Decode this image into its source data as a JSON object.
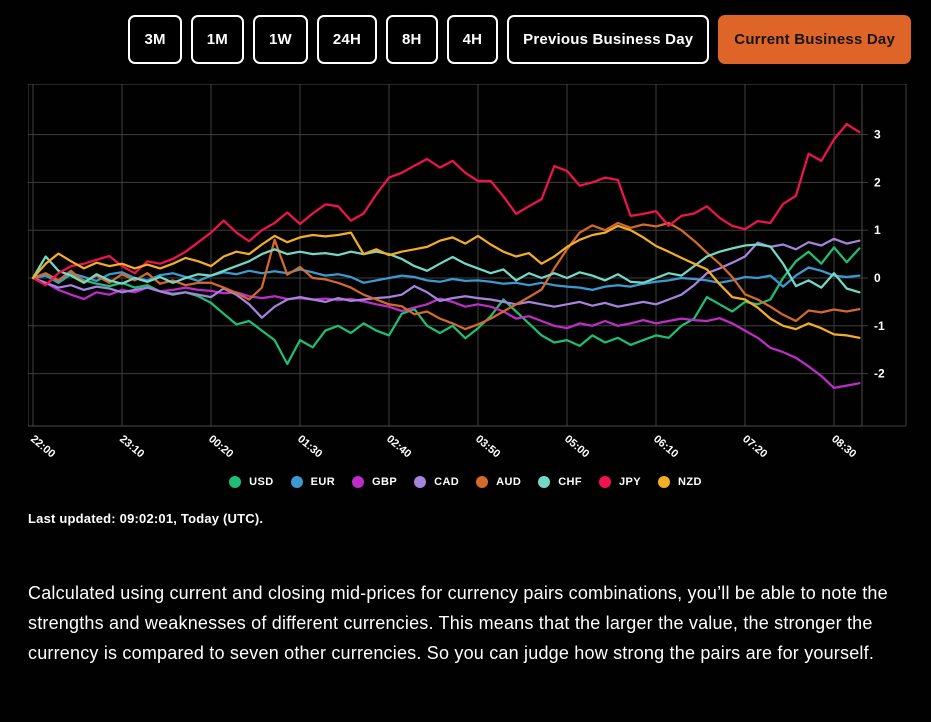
{
  "toolbar": {
    "active_bg": "#de6527",
    "active_text": "#151515",
    "buttons": [
      {
        "label": "3M"
      },
      {
        "label": "1M"
      },
      {
        "label": "1W"
      },
      {
        "label": "24H"
      },
      {
        "label": "8H"
      },
      {
        "label": "4H"
      },
      {
        "label": "Previous Business Day"
      },
      {
        "label": "Current Business Day",
        "active": true
      }
    ]
  },
  "chart_data": {
    "type": "line",
    "title": "",
    "xlabel": "",
    "ylabel": "",
    "x_labels": [
      "22:00",
      "23:10",
      "00:20",
      "01:30",
      "02:40",
      "03:50",
      "05:00",
      "06:10",
      "07:20",
      "08:30"
    ],
    "points_per_tick": 7,
    "point_interval_minutes": 10,
    "y_ticks": [
      3,
      2,
      1,
      0,
      -1,
      -2
    ],
    "ylim": [
      -3.1,
      4.06
    ],
    "grid": true,
    "legend_position": "bottom",
    "series": [
      {
        "name": "USD",
        "color": "#1fbe76",
        "values": [
          0,
          0.05,
          -0.1,
          0.08,
          -0.05,
          -0.12,
          -0.17,
          -0.1,
          -0.2,
          -0.15,
          -0.28,
          -0.33,
          -0.3,
          -0.38,
          -0.52,
          -0.75,
          -0.97,
          -0.9,
          -1.1,
          -1.3,
          -1.8,
          -1.3,
          -1.45,
          -1.1,
          -1.0,
          -1.15,
          -0.95,
          -1.1,
          -1.2,
          -0.75,
          -0.65,
          -1.0,
          -1.15,
          -1.0,
          -1.26,
          -1.05,
          -0.8,
          -0.45,
          -0.7,
          -0.95,
          -1.2,
          -1.35,
          -1.3,
          -1.42,
          -1.2,
          -1.35,
          -1.25,
          -1.4,
          -1.3,
          -1.2,
          -1.25,
          -1.0,
          -0.85,
          -0.4,
          -0.55,
          -0.7,
          -0.5,
          -0.55,
          -0.45,
          0.0,
          0.35,
          0.55,
          0.3,
          0.64,
          0.33,
          0.62
        ]
      },
      {
        "name": "EUR",
        "color": "#3b9ad1",
        "values": [
          0,
          0.05,
          -0.08,
          0.1,
          0.02,
          -0.06,
          0.08,
          0.12,
          0.0,
          -0.05,
          0.06,
          0.1,
          0.02,
          -0.06,
          0.05,
          0.12,
          0.08,
          0.15,
          0.1,
          0.14,
          0.1,
          0.18,
          0.12,
          0.05,
          0.08,
          0.02,
          -0.1,
          -0.05,
          0.0,
          0.05,
          0.02,
          -0.05,
          -0.08,
          -0.02,
          -0.06,
          -0.05,
          -0.08,
          -0.12,
          -0.1,
          -0.15,
          -0.1,
          -0.15,
          -0.18,
          -0.2,
          -0.25,
          -0.18,
          -0.15,
          -0.18,
          -0.12,
          -0.08,
          -0.05,
          0.0,
          -0.02,
          -0.05,
          -0.1,
          -0.05,
          0.02,
          0.0,
          0.05,
          -0.18,
          0.05,
          0.22,
          0.15,
          0.05,
          0.02,
          0.05
        ]
      },
      {
        "name": "GBP",
        "color": "#bf2dc9",
        "values": [
          0,
          -0.1,
          -0.25,
          -0.35,
          -0.44,
          -0.3,
          -0.35,
          -0.25,
          -0.3,
          -0.2,
          -0.28,
          -0.25,
          -0.2,
          -0.25,
          -0.27,
          -0.32,
          -0.3,
          -0.38,
          -0.42,
          -0.38,
          -0.44,
          -0.42,
          -0.45,
          -0.43,
          -0.46,
          -0.44,
          -0.49,
          -0.55,
          -0.6,
          -0.69,
          -0.62,
          -0.55,
          -0.43,
          -0.5,
          -0.6,
          -0.55,
          -0.6,
          -0.7,
          -0.85,
          -0.8,
          -0.9,
          -1.0,
          -1.05,
          -0.95,
          -1.0,
          -0.9,
          -1.0,
          -0.95,
          -0.88,
          -0.95,
          -0.9,
          -0.85,
          -0.88,
          -0.9,
          -0.84,
          -0.95,
          -1.1,
          -1.25,
          -1.46,
          -1.55,
          -1.67,
          -1.85,
          -2.05,
          -2.3,
          -2.25,
          -2.2
        ]
      },
      {
        "name": "CAD",
        "color": "#a584dc",
        "values": [
          0,
          -0.1,
          -0.2,
          -0.15,
          -0.25,
          -0.18,
          -0.22,
          -0.3,
          -0.25,
          -0.2,
          -0.28,
          -0.35,
          -0.3,
          -0.35,
          -0.4,
          -0.22,
          -0.35,
          -0.55,
          -0.83,
          -0.6,
          -0.45,
          -0.4,
          -0.45,
          -0.5,
          -0.42,
          -0.48,
          -0.45,
          -0.42,
          -0.4,
          -0.35,
          -0.17,
          -0.3,
          -0.48,
          -0.42,
          -0.38,
          -0.42,
          -0.45,
          -0.5,
          -0.55,
          -0.5,
          -0.55,
          -0.6,
          -0.55,
          -0.5,
          -0.58,
          -0.52,
          -0.6,
          -0.55,
          -0.5,
          -0.55,
          -0.45,
          -0.35,
          -0.15,
          0.1,
          0.2,
          0.32,
          0.45,
          0.74,
          0.65,
          0.7,
          0.6,
          0.75,
          0.68,
          0.82,
          0.72,
          0.78
        ]
      },
      {
        "name": "AUD",
        "color": "#d3692d",
        "values": [
          0,
          0.1,
          -0.05,
          0.15,
          -0.08,
          0.05,
          -0.1,
          0.08,
          -0.05,
          0.1,
          -0.12,
          -0.05,
          -0.15,
          -0.1,
          -0.1,
          -0.2,
          -0.31,
          -0.45,
          -0.2,
          0.8,
          0.07,
          0.23,
          0.0,
          -0.03,
          -0.1,
          -0.2,
          -0.35,
          -0.45,
          -0.55,
          -0.59,
          -0.76,
          -0.7,
          -0.85,
          -0.95,
          -1.07,
          -0.97,
          -0.85,
          -0.7,
          -0.55,
          -0.4,
          -0.24,
          0.2,
          0.6,
          0.95,
          1.1,
          1.0,
          1.15,
          1.05,
          1.12,
          1.08,
          1.15,
          1.0,
          0.78,
          0.53,
          0.3,
          0.02,
          -0.34,
          -0.45,
          -0.6,
          -0.77,
          -0.9,
          -0.68,
          -0.72,
          -0.66,
          -0.7,
          -0.65
        ]
      },
      {
        "name": "CHF",
        "color": "#74d9c4",
        "values": [
          0,
          0.45,
          0.15,
          0.05,
          -0.1,
          0.08,
          -0.05,
          -0.12,
          0.0,
          -0.08,
          0.02,
          -0.1,
          0.0,
          0.08,
          0.05,
          0.15,
          0.25,
          0.35,
          0.5,
          0.6,
          0.5,
          0.55,
          0.5,
          0.52,
          0.48,
          0.55,
          0.5,
          0.55,
          0.5,
          0.4,
          0.25,
          0.15,
          0.3,
          0.44,
          0.3,
          0.2,
          0.1,
          0.18,
          -0.05,
          0.1,
          0.0,
          0.1,
          0.0,
          0.12,
          0.05,
          -0.05,
          0.08,
          -0.08,
          -0.1,
          0.0,
          0.1,
          0.05,
          0.25,
          0.45,
          0.55,
          0.62,
          0.68,
          0.7,
          0.66,
          0.3,
          -0.17,
          -0.05,
          -0.2,
          0.1,
          -0.22,
          -0.3
        ]
      },
      {
        "name": "JPY",
        "color": "#f01351",
        "values": [
          0,
          -0.15,
          0.1,
          0.25,
          0.3,
          0.38,
          0.46,
          0.25,
          0.1,
          0.35,
          0.3,
          0.4,
          0.55,
          0.75,
          0.95,
          1.2,
          0.95,
          0.77,
          1.0,
          1.15,
          1.37,
          1.13,
          1.35,
          1.54,
          1.5,
          1.2,
          1.35,
          1.75,
          2.1,
          2.2,
          2.35,
          2.49,
          2.31,
          2.45,
          2.2,
          2.03,
          2.03,
          1.71,
          1.34,
          1.5,
          1.65,
          2.34,
          2.24,
          1.93,
          2.0,
          2.1,
          2.05,
          1.3,
          1.34,
          1.4,
          1.09,
          1.3,
          1.35,
          1.5,
          1.26,
          1.09,
          1.02,
          1.19,
          1.15,
          1.55,
          1.72,
          2.6,
          2.45,
          2.9,
          3.22,
          3.05
        ]
      },
      {
        "name": "NZD",
        "color": "#f3ae25",
        "values": [
          0,
          0.3,
          0.51,
          0.35,
          0.2,
          0.32,
          0.25,
          0.3,
          0.2,
          0.28,
          0.2,
          0.3,
          0.42,
          0.35,
          0.25,
          0.45,
          0.55,
          0.5,
          0.7,
          0.88,
          0.75,
          0.85,
          0.9,
          0.87,
          0.9,
          0.95,
          0.5,
          0.6,
          0.48,
          0.55,
          0.6,
          0.65,
          0.78,
          0.85,
          0.72,
          0.88,
          0.7,
          0.55,
          0.45,
          0.52,
          0.3,
          0.45,
          0.65,
          0.8,
          0.9,
          0.95,
          1.09,
          1.0,
          0.85,
          0.67,
          0.55,
          0.42,
          0.3,
          0.18,
          -0.13,
          -0.4,
          -0.45,
          -0.62,
          -0.85,
          -1.0,
          -1.07,
          -0.95,
          -1.05,
          -1.18,
          -1.2,
          -1.25
        ]
      }
    ]
  },
  "footer": {
    "last_updated": "Last updated: 09:02:01, Today (UTC)."
  },
  "description": {
    "text": "Calculated using current and closing mid-prices for currency pairs combinations, you’ll be able to note the strengths and weaknesses of different currencies. This means that the larger the value, the stronger the currency is compared to seven other currencies. So you can judge how strong the pairs are for yourself."
  }
}
